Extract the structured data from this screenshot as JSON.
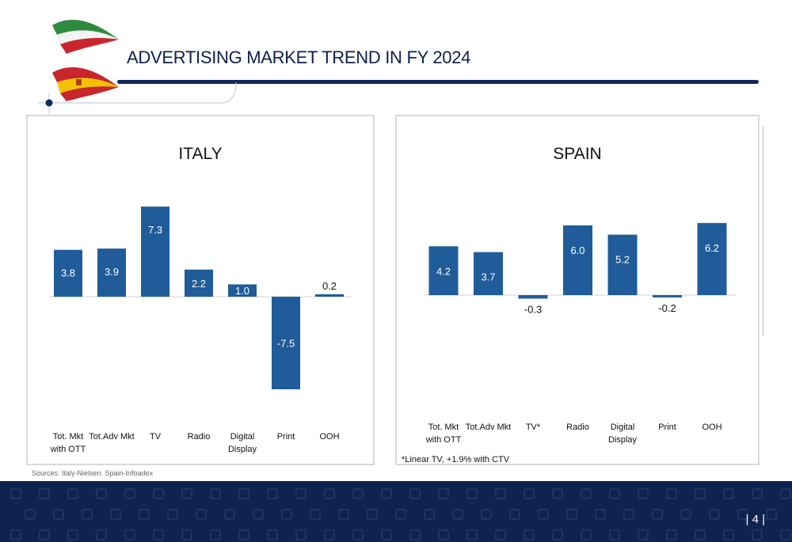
{
  "page": {
    "title": "ADVERTISING MARKET TREND IN FY 2024",
    "sources": "Sources: Italy-Nielsen. Spain-Infoadex",
    "page_number": "| 4 |"
  },
  "colors": {
    "bar": "#1f5c99",
    "title_rule": "#12295a",
    "footer": "#0f2350",
    "italy_flag": [
      "#2e8b3e",
      "#ffffff",
      "#c8262c"
    ],
    "spain_flag": [
      "#c8262c",
      "#f2c200",
      "#c8262c"
    ]
  },
  "icons": [
    "italy-flag-icon",
    "spain-flag-icon"
  ],
  "chart_data": [
    {
      "type": "bar",
      "title": "ITALY",
      "categories": [
        "Tot. Mkt with OTT",
        "Tot.Adv Mkt",
        "TV",
        "Radio",
        "Digital Display",
        "Print",
        "OOH"
      ],
      "category_lines": [
        [
          "Tot. Mkt",
          "with OTT"
        ],
        [
          "Tot.Adv Mkt"
        ],
        [
          "TV"
        ],
        [
          "Radio"
        ],
        [
          "Digital",
          "Display"
        ],
        [
          "Print"
        ],
        [
          "OOH"
        ]
      ],
      "values": [
        3.8,
        3.9,
        7.3,
        2.2,
        1.0,
        -7.5,
        0.2
      ],
      "value_labels": [
        "3.8",
        "3.9",
        "7.3",
        "2.2",
        "1.0",
        "-7.5",
        "0.2"
      ],
      "ylim": [
        -7.5,
        7.3
      ],
      "grid": false,
      "legend": "none"
    },
    {
      "type": "bar",
      "title": "SPAIN",
      "categories": [
        "Tot. Mkt with OTT",
        "Tot.Adv Mkt",
        "TV*",
        "Radio",
        "Digital Display",
        "Print",
        "OOH"
      ],
      "category_lines": [
        [
          "Tot. Mkt",
          "with OTT"
        ],
        [
          "Tot.Adv Mkt"
        ],
        [
          "TV*"
        ],
        [
          "Radio"
        ],
        [
          "Digital",
          "Display"
        ],
        [
          "Print"
        ],
        [
          "OOH"
        ]
      ],
      "values": [
        4.2,
        3.7,
        -0.3,
        6.0,
        5.2,
        -0.2,
        6.2
      ],
      "value_labels": [
        "4.2",
        "3.7",
        "-0.3",
        "6.0",
        "5.2",
        "-0.2",
        "6.2"
      ],
      "footnote": "*Linear TV, +1.9% with CTV",
      "ylim": [
        -0.3,
        6.2
      ],
      "grid": false,
      "legend": "none"
    }
  ]
}
